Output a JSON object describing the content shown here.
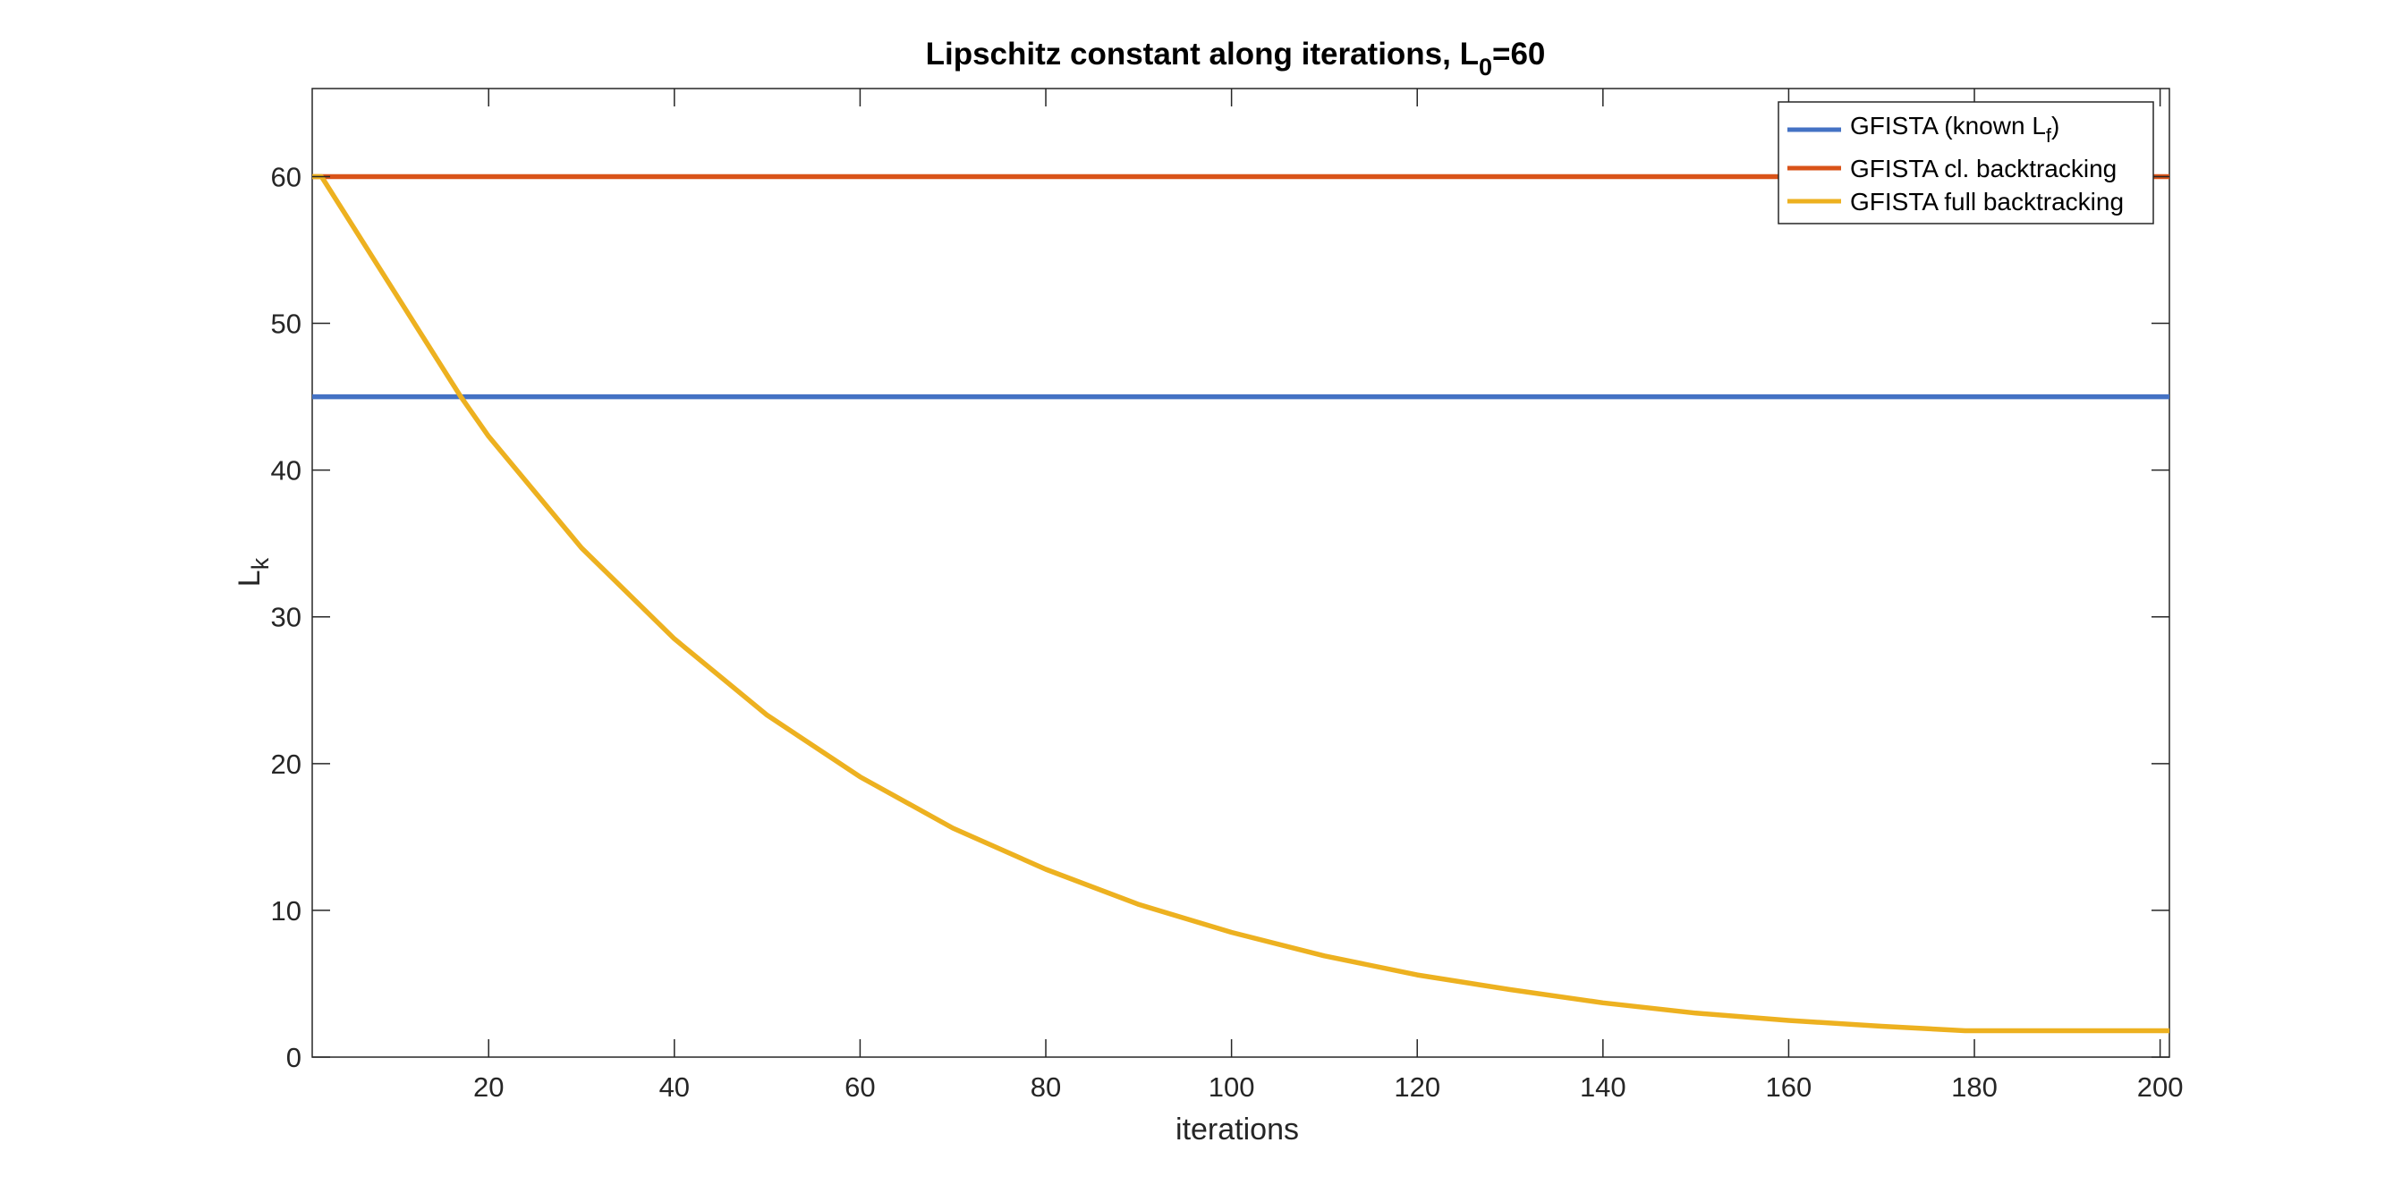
{
  "chart_data": {
    "type": "line",
    "title": {
      "main": "Lipschitz constant along iterations, L",
      "subscript": "0",
      "suffix": "=60"
    },
    "xlabel": "iterations",
    "ylabel": {
      "main": "L",
      "subscript": "k"
    },
    "xlim": [
      1,
      201
    ],
    "ylim": [
      0,
      66
    ],
    "xticks": [
      20,
      40,
      60,
      80,
      100,
      120,
      140,
      160,
      180,
      200
    ],
    "yticks": [
      0,
      10,
      20,
      30,
      40,
      50,
      60
    ],
    "grid": false,
    "legend_position": "top-right",
    "series": [
      {
        "name": "GFISTA (known L_f)",
        "legend_main": "GFISTA (known L",
        "legend_sub": "f",
        "legend_suffix": ")",
        "color": "#4472c4",
        "x": [
          1,
          201
        ],
        "y": [
          45,
          45
        ]
      },
      {
        "name": "GFISTA cl. backtracking",
        "legend_main": "GFISTA cl. backtracking",
        "color": "#d95319",
        "x": [
          1,
          201
        ],
        "y": [
          60,
          60
        ]
      },
      {
        "name": "GFISTA full backtracking",
        "legend_main": "GFISTA full backtracking",
        "color": "#edb120",
        "x": [
          1,
          2,
          10,
          17,
          20,
          30,
          40,
          50,
          60,
          70,
          80,
          90,
          100,
          110,
          120,
          130,
          140,
          150,
          160,
          170,
          179,
          180,
          190,
          200,
          201
        ],
        "y": [
          60,
          60,
          52,
          45,
          42.3,
          34.7,
          28.5,
          23.3,
          19.1,
          15.6,
          12.8,
          10.4,
          8.5,
          6.9,
          5.6,
          4.6,
          3.7,
          3.0,
          2.5,
          2.1,
          1.8,
          1.8,
          1.8,
          1.8,
          1.8
        ]
      }
    ]
  }
}
